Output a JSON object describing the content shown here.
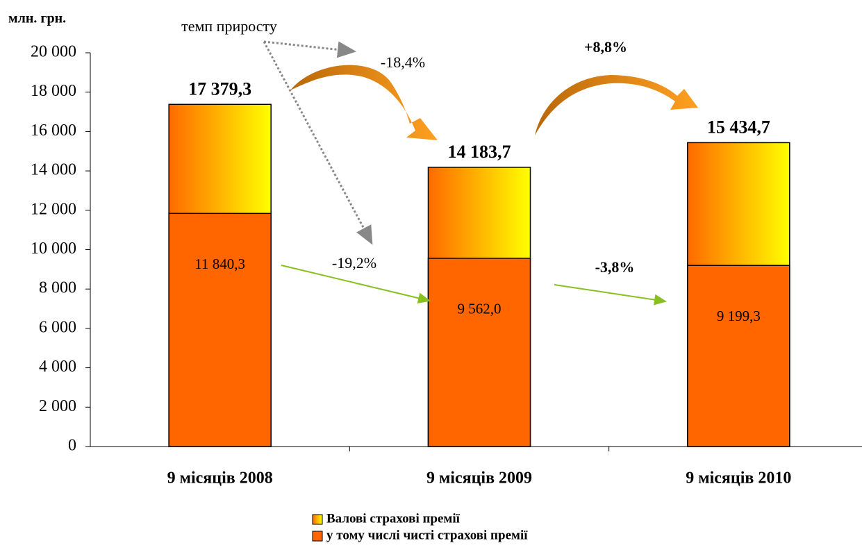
{
  "chart_data": {
    "type": "bar",
    "y_label": "млн. грн.",
    "categories": [
      "9 місяців 2008",
      "9 місяців 2009",
      "9 місяців 2010"
    ],
    "series": [
      {
        "name": "Валові страхові премії",
        "color": "#ffff00",
        "values": [
          17379.3,
          14183.7,
          15434.7
        ],
        "value_labels": [
          "17 379,3",
          "14 183,7",
          "15 434,7"
        ]
      },
      {
        "name": "у тому числі чисті страхові премії",
        "color": "#ff6600",
        "values": [
          11840.3,
          9562.0,
          9199.3
        ],
        "value_labels": [
          "11 840,3",
          "9 562,0",
          "9 199,3"
        ]
      }
    ],
    "annotations": [
      "темп приросту",
      "-18,4%",
      "+8,8%",
      "-19,2%",
      "-3,8%"
    ],
    "ylim": [
      0,
      20000
    ],
    "yticks": [
      0,
      {
        "value": 2000,
        "label": "2 000"
      },
      {
        "value": 4000,
        "label": "4 000"
      },
      {
        "value": 6000,
        "label": "6 000"
      },
      {
        "value": 8000,
        "label": "8 000"
      },
      {
        "value": 10000,
        "label": "10 000"
      },
      {
        "value": 12000,
        "label": "12 000"
      },
      {
        "value": 14000,
        "label": "14 000"
      },
      {
        "value": 16000,
        "label": "16 000"
      },
      {
        "value": 18000,
        "label": "18 000"
      },
      {
        "value": 20000,
        "label": "20 000"
      }
    ],
    "grid": false
  }
}
